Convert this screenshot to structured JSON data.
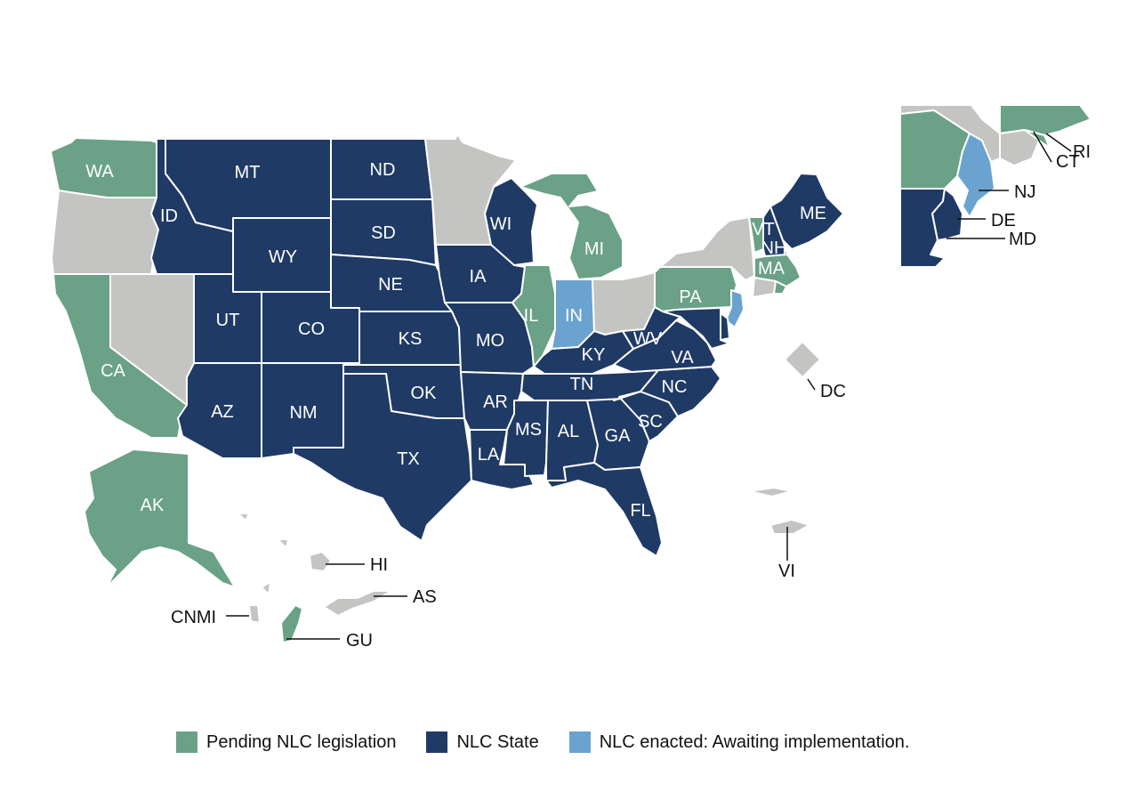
{
  "colors": {
    "nlc_state": "#1f3a64",
    "pending": "#6aa187",
    "enacted_awaiting": "#6aa3cf",
    "none": "#c4c4c2"
  },
  "legend": [
    {
      "key": "pending",
      "label": "Pending NLC legislation",
      "color": "#6aa187"
    },
    {
      "key": "nlc_state",
      "label": "NLC State",
      "color": "#1f3a64"
    },
    {
      "key": "enacted_awaiting",
      "label": "NLC enacted: Awaiting implementation.",
      "color": "#6aa3cf"
    }
  ],
  "states": {
    "WA": "pending",
    "OR": "none",
    "CA": "pending",
    "NV": "none",
    "ID": "nlc_state",
    "MT": "nlc_state",
    "WY": "nlc_state",
    "UT": "nlc_state",
    "AZ": "nlc_state",
    "CO": "nlc_state",
    "NM": "nlc_state",
    "ND": "nlc_state",
    "SD": "nlc_state",
    "NE": "nlc_state",
    "KS": "nlc_state",
    "OK": "nlc_state",
    "TX": "nlc_state",
    "MN": "none",
    "IA": "nlc_state",
    "MO": "nlc_state",
    "AR": "nlc_state",
    "LA": "nlc_state",
    "WI": "nlc_state",
    "IL": "pending",
    "MI": "pending",
    "IN": "enacted_awaiting",
    "OH": "none",
    "KY": "nlc_state",
    "TN": "nlc_state",
    "MS": "nlc_state",
    "AL": "nlc_state",
    "GA": "nlc_state",
    "FL": "nlc_state",
    "SC": "nlc_state",
    "NC": "nlc_state",
    "VA": "nlc_state",
    "WV": "nlc_state",
    "PA": "pending",
    "NY": "none",
    "VT": "pending",
    "NH": "nlc_state",
    "ME": "nlc_state",
    "MA": "pending",
    "RI": "pending",
    "CT": "none",
    "NJ": "enacted_awaiting",
    "DE": "nlc_state",
    "MD": "nlc_state",
    "DC": "none",
    "AK": "pending",
    "HI": "none",
    "AS": "none",
    "CNMI": "none",
    "GU": "pending",
    "VI": "none"
  },
  "labels": {
    "WA": "WA",
    "ID": "ID",
    "MT": "MT",
    "ND": "ND",
    "SD": "SD",
    "WY": "WY",
    "NE": "NE",
    "UT": "UT",
    "CO": "CO",
    "KS": "KS",
    "CA": "CA",
    "AZ": "AZ",
    "NM": "NM",
    "OK": "OK",
    "TX": "TX",
    "IA": "IA",
    "MO": "MO",
    "AR": "AR",
    "LA": "LA",
    "WI": "WI",
    "IL": "IL",
    "MI": "MI",
    "IN": "IN",
    "KY": "KY",
    "TN": "TN",
    "MS": "MS",
    "AL": "AL",
    "GA": "GA",
    "FL": "FL",
    "SC": "SC",
    "NC": "NC",
    "VA": "VA",
    "WV": "WV",
    "PA": "PA",
    "VT": "VT",
    "NH": "NH",
    "MA": "MA",
    "ME": "ME",
    "AK": "AK",
    "DC": "DC",
    "HI": "HI",
    "AS": "AS",
    "CNMI": "CNMI",
    "GU": "GU",
    "VI": "VI",
    "RI": "RI",
    "CT": "CT",
    "NJ": "NJ",
    "DE": "DE",
    "MD": "MD"
  }
}
